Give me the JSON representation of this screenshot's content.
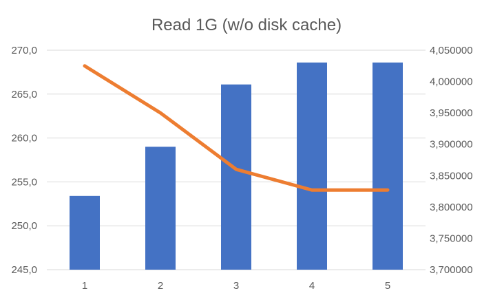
{
  "chart_data": {
    "type": "bar",
    "title": "Read 1G (w/o disk cache)",
    "categories": [
      "1",
      "2",
      "3",
      "4",
      "5"
    ],
    "series": [
      {
        "type": "bar",
        "axis": "primary",
        "values": [
          253.4,
          259.0,
          266.1,
          268.6,
          268.6
        ],
        "color": "#4472c4"
      },
      {
        "type": "line",
        "axis": "secondary",
        "values": [
          4025000,
          3950000,
          3860000,
          3827000,
          3827000
        ],
        "color": "#ed7d31"
      }
    ],
    "primary_axis": {
      "ylim": [
        245,
        270
      ],
      "ticks": [
        245,
        250,
        255,
        260,
        265,
        270
      ],
      "tick_labels": [
        "245,0",
        "250,0",
        "255,0",
        "260,0",
        "265,0",
        "270,0"
      ]
    },
    "secondary_axis": {
      "ylim": [
        3700000,
        4050000
      ],
      "ticks": [
        3700000,
        3750000,
        3800000,
        3850000,
        3900000,
        3950000,
        4000000,
        4050000
      ],
      "tick_labels": [
        "3,700000",
        "3,750000",
        "3,800000",
        "3,850000",
        "3,900000",
        "3,950000",
        "4,000000",
        "4,050000"
      ]
    },
    "grid": true,
    "legend": "none"
  }
}
